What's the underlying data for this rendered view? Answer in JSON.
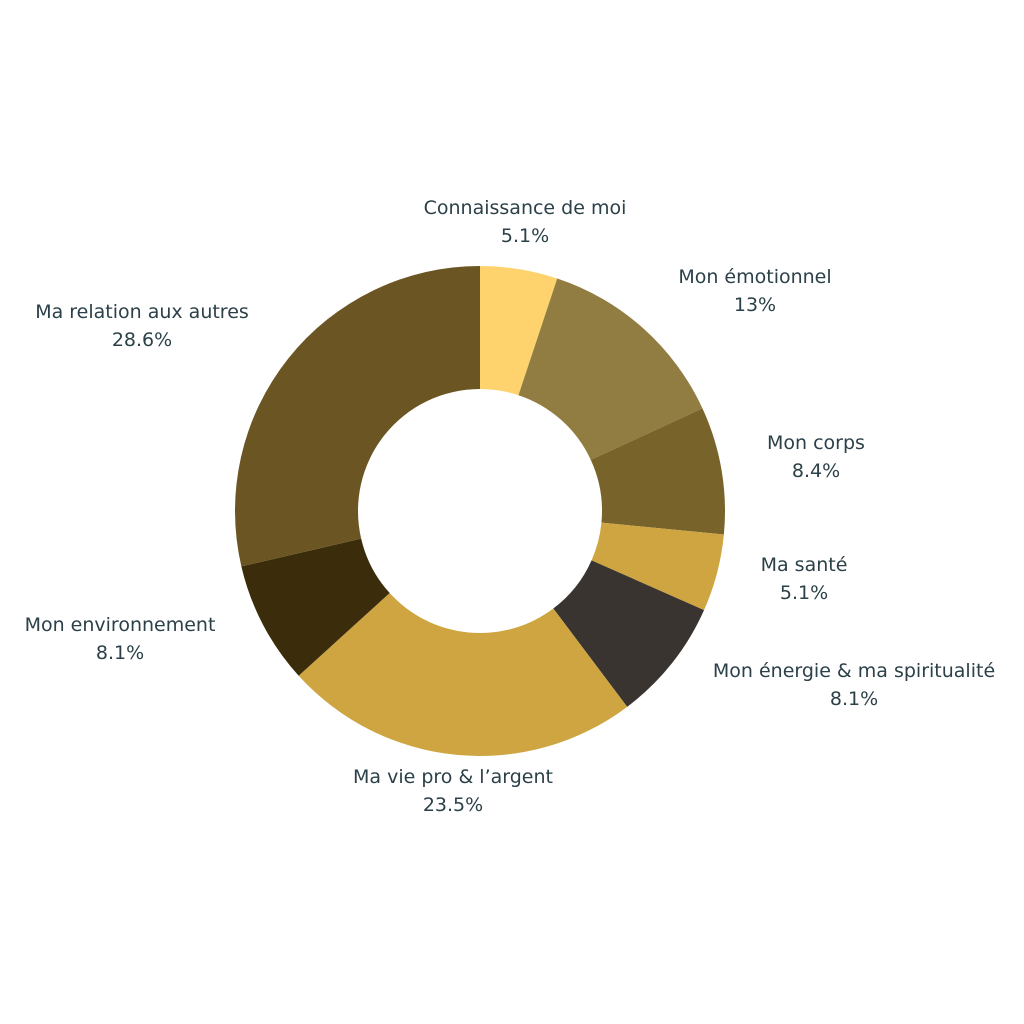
{
  "chart_data": {
    "type": "pie",
    "variant": "donut",
    "title": "",
    "slices": [
      {
        "label": "Connaissance de moi",
        "value": 5.1,
        "value_label": "5.1%",
        "color": "#fed36e"
      },
      {
        "label": "Mon émotionnel",
        "value": 13,
        "value_label": "13%",
        "color": "#917c42"
      },
      {
        "label": "Mon corps",
        "value": 8.4,
        "value_label": "8.4%",
        "color": "#78632a"
      },
      {
        "label": "Ma santé",
        "value": 5.1,
        "value_label": "5.1%",
        "color": "#cfa542"
      },
      {
        "label": "Mon énergie & ma spiritualité",
        "value": 8.1,
        "value_label": "8.1%",
        "color": "#39342f"
      },
      {
        "label": "Ma vie pro & l’argent",
        "value": 23.5,
        "value_label": "23.5%",
        "color": "#cfa542"
      },
      {
        "label": "Mon environnement",
        "value": 8.1,
        "value_label": "8.1%",
        "color": "#3b2d0b"
      },
      {
        "label": "Ma relation aux autres",
        "value": 28.6,
        "value_label": "28.6%",
        "color": "#6b5522"
      }
    ],
    "legend": "none",
    "label_color": "#2b4048"
  }
}
